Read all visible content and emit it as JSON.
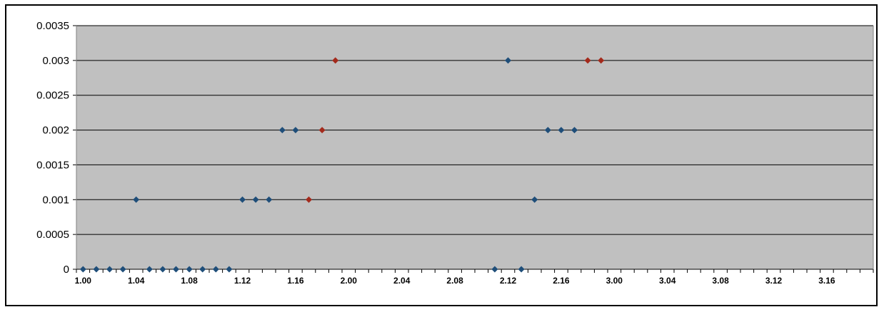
{
  "chart_data": {
    "type": "scatter",
    "title": "",
    "xlabel": "",
    "ylabel": "",
    "ylim": [
      0,
      0.0035
    ],
    "y_ticks": [
      "0",
      "0.0005",
      "0.001",
      "0.0015",
      "0.002",
      "0.0025",
      "0.003",
      "0.0035"
    ],
    "categories": [
      "1.00",
      "1.01",
      "1.02",
      "1.03",
      "1.04",
      "1.05",
      "1.06",
      "1.07",
      "1.08",
      "1.09",
      "1.10",
      "1.11",
      "1.12",
      "1.13",
      "1.14",
      "1.15",
      "1.16",
      "1.17",
      "1.18",
      "1.19",
      "2.00",
      "2.01",
      "2.02",
      "2.03",
      "2.04",
      "2.05",
      "2.06",
      "2.07",
      "2.08",
      "2.09",
      "2.10",
      "2.11",
      "2.12",
      "2.13",
      "2.14",
      "2.15",
      "2.16",
      "2.17",
      "2.18",
      "2.19",
      "3.00",
      "3.01",
      "3.02",
      "3.03",
      "3.04",
      "3.05",
      "3.06",
      "3.07",
      "3.08",
      "3.09",
      "3.10",
      "3.11",
      "3.12",
      "3.13",
      "3.14",
      "3.15",
      "3.16",
      "3.17",
      "3.18",
      "3.19"
    ],
    "x_tick_labels": [
      "1.00",
      "1.04",
      "1.08",
      "1.12",
      "1.16",
      "2.00",
      "2.04",
      "2.08",
      "2.12",
      "2.16",
      "3.00",
      "3.04",
      "3.08",
      "3.12",
      "3.16"
    ],
    "grid": true,
    "legend": "none",
    "series": [
      {
        "color": "#1f4e79",
        "marker": "diamond",
        "points": [
          {
            "x": "1.00",
            "y": 0
          },
          {
            "x": "1.01",
            "y": 0
          },
          {
            "x": "1.02",
            "y": 0
          },
          {
            "x": "1.03",
            "y": 0
          },
          {
            "x": "1.04",
            "y": 0.001
          },
          {
            "x": "1.05",
            "y": 0
          },
          {
            "x": "1.06",
            "y": 0
          },
          {
            "x": "1.07",
            "y": 0
          },
          {
            "x": "1.08",
            "y": 0
          },
          {
            "x": "1.09",
            "y": 0
          },
          {
            "x": "1.10",
            "y": 0
          },
          {
            "x": "1.11",
            "y": 0
          },
          {
            "x": "1.12",
            "y": 0.001
          },
          {
            "x": "1.13",
            "y": 0.001
          },
          {
            "x": "1.14",
            "y": 0.001
          },
          {
            "x": "1.15",
            "y": 0.002
          },
          {
            "x": "1.16",
            "y": 0.002
          },
          {
            "x": "2.11",
            "y": 0
          },
          {
            "x": "2.12",
            "y": 0.003
          },
          {
            "x": "2.13",
            "y": 0
          },
          {
            "x": "2.14",
            "y": 0.001
          },
          {
            "x": "2.15",
            "y": 0.002
          },
          {
            "x": "2.16",
            "y": 0.002
          },
          {
            "x": "2.17",
            "y": 0.002
          }
        ]
      },
      {
        "color": "#a32a1c",
        "marker": "diamond",
        "points": [
          {
            "x": "1.17",
            "y": 0.001
          },
          {
            "x": "1.18",
            "y": 0.002
          },
          {
            "x": "1.19",
            "y": 0.003
          },
          {
            "x": "2.18",
            "y": 0.003
          },
          {
            "x": "2.19",
            "y": 0.003
          }
        ]
      }
    ],
    "colors": {
      "plot_background": "#c0c0c0",
      "gridline": "#000000"
    }
  }
}
